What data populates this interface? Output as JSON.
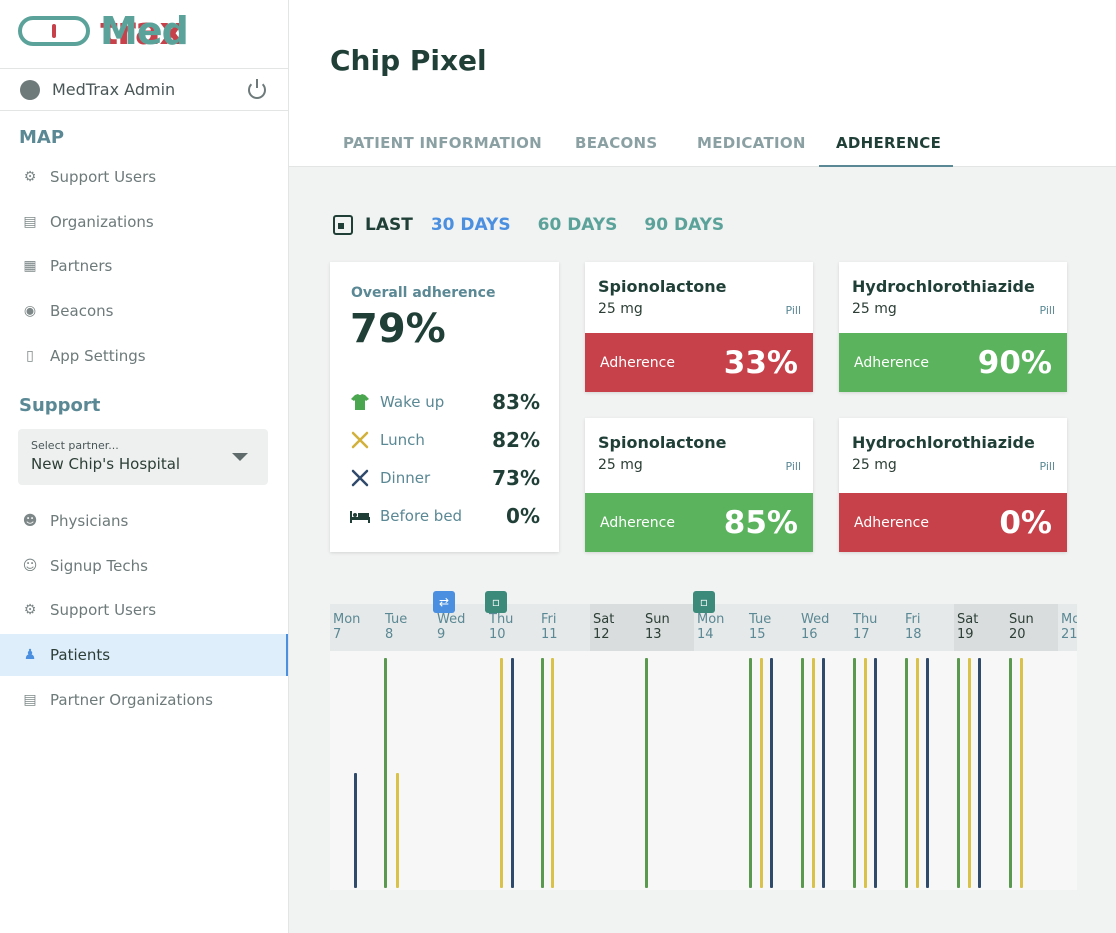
{
  "brand": {
    "med": "Med",
    "trax": "trax"
  },
  "user": {
    "name": "MedTrax Admin"
  },
  "sidebar": {
    "map_title": "MAP",
    "map_items": [
      "Support Users",
      "Organizations",
      "Partners",
      "Beacons",
      "App Settings"
    ],
    "support_title": "Support",
    "partner_select": {
      "label": "Select partner...",
      "value": "New Chip's Hospital"
    },
    "support_items": [
      "Physicians",
      "Signup Techs",
      "Support Users",
      "Patients",
      "Partner Organizations"
    ],
    "active_item": "Patients"
  },
  "patient": {
    "name": "Chip Pixel"
  },
  "tabs": [
    "PATIENT INFORMATION",
    "BEACONS",
    "MEDICATION",
    "ADHERENCE"
  ],
  "active_tab": "ADHERENCE",
  "range": {
    "last": "LAST",
    "options": [
      "30 DAYS",
      "60 DAYS",
      "90 DAYS"
    ],
    "selected": "30 DAYS"
  },
  "overall": {
    "title": "Overall adherence",
    "value": "79%",
    "meals": [
      {
        "label": "Wake up",
        "value": "83%",
        "icon": "shirt-icon"
      },
      {
        "label": "Lunch",
        "value": "82%",
        "icon": "lunch-icon"
      },
      {
        "label": "Dinner",
        "value": "73%",
        "icon": "dinner-icon"
      },
      {
        "label": "Before bed",
        "value": "0%",
        "icon": "bed-icon"
      }
    ]
  },
  "medications": [
    {
      "name": "Spionolactone",
      "dose": "25 mg",
      "form": "Pill",
      "adherence_label": "Adherence",
      "adherence": "33%",
      "status": "red"
    },
    {
      "name": "Hydrochlorothiazide",
      "dose": "25 mg",
      "form": "Pill",
      "adherence_label": "Adherence",
      "adherence": "90%",
      "status": "green"
    },
    {
      "name": "Spionolactone",
      "dose": "25 mg",
      "form": "Pill",
      "adherence_label": "Adherence",
      "adherence": "85%",
      "status": "green"
    },
    {
      "name": "Hydrochlorothiazide",
      "dose": "25 mg",
      "form": "Pill",
      "adherence_label": "Adherence",
      "adherence": "0%",
      "status": "red"
    }
  ],
  "timeline": {
    "days": [
      {
        "dow": "Mon",
        "date": "7",
        "weekend": false
      },
      {
        "dow": "Tue",
        "date": "8",
        "weekend": false
      },
      {
        "dow": "Wed",
        "date": "9",
        "weekend": false
      },
      {
        "dow": "Thu",
        "date": "10",
        "weekend": false
      },
      {
        "dow": "Fri",
        "date": "11",
        "weekend": false
      },
      {
        "dow": "Sat",
        "date": "12",
        "weekend": true
      },
      {
        "dow": "Sun",
        "date": "13",
        "weekend": true
      },
      {
        "dow": "Mon",
        "date": "14",
        "weekend": false
      },
      {
        "dow": "Tue",
        "date": "15",
        "weekend": false
      },
      {
        "dow": "Wed",
        "date": "16",
        "weekend": false
      },
      {
        "dow": "Thu",
        "date": "17",
        "weekend": false
      },
      {
        "dow": "Fri",
        "date": "18",
        "weekend": false
      },
      {
        "dow": "Sat",
        "date": "19",
        "weekend": true
      },
      {
        "dow": "Sun",
        "date": "20",
        "weekend": true
      },
      {
        "dow": "Mon",
        "date": "21",
        "weekend": false
      }
    ],
    "colors": {
      "green": "#5a9a4e",
      "yellow": "#d8c24a",
      "navy": "#2f4a6b"
    }
  }
}
